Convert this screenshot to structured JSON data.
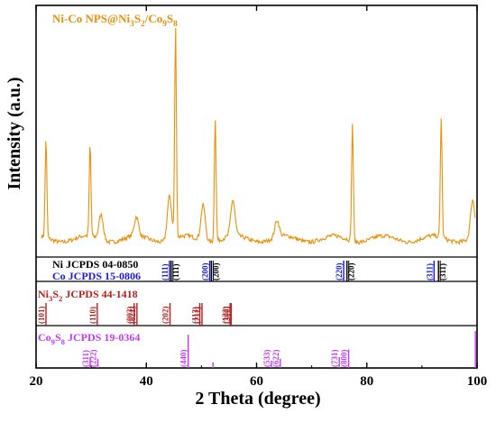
{
  "chart_data": {
    "type": "line",
    "title_parts": [
      {
        "text": "Ni-Co NPS@Ni",
        "sub": false
      },
      {
        "text": "3",
        "sub": true
      },
      {
        "text": "S",
        "sub": false
      },
      {
        "text": "2",
        "sub": true
      },
      {
        "text": "/Co",
        "sub": false
      },
      {
        "text": "9",
        "sub": true
      },
      {
        "text": "S",
        "sub": false
      },
      {
        "text": "8",
        "sub": true
      }
    ],
    "xlabel": "2 Theta (degree)",
    "ylabel": "Intensity (a.u.)",
    "xlim": [
      20,
      100
    ],
    "xticks": [
      20,
      40,
      60,
      80,
      100
    ],
    "colors": {
      "pattern": "#e8910c",
      "ni": "#000000",
      "co": "#1a1ad6",
      "ni3s2": "#b22222",
      "co9s8": "#c03cf0"
    },
    "experimental_peaks": [
      {
        "x": 21.8,
        "y": 0.47
      },
      {
        "x": 29.8,
        "y": 0.44
      },
      {
        "x": 31.8,
        "y": 0.12
      },
      {
        "x": 38.2,
        "y": 0.09
      },
      {
        "x": 44.2,
        "y": 0.21
      },
      {
        "x": 45.3,
        "y": 1.0
      },
      {
        "x": 50.3,
        "y": 0.17
      },
      {
        "x": 52.5,
        "y": 0.59
      },
      {
        "x": 55.7,
        "y": 0.17
      },
      {
        "x": 63.7,
        "y": 0.08
      },
      {
        "x": 77.4,
        "y": 0.56
      },
      {
        "x": 93.5,
        "y": 0.57
      },
      {
        "x": 99.2,
        "y": 0.18
      }
    ],
    "references": [
      {
        "label": "Ni  JCPDS 04-0850",
        "color_key": "ni",
        "peaks": [
          {
            "x": 44.5,
            "hkl": "(111)"
          },
          {
            "x": 51.8,
            "hkl": "(200)"
          },
          {
            "x": 76.4,
            "hkl": "(220)"
          },
          {
            "x": 93.0,
            "hkl": "(311)"
          }
        ]
      },
      {
        "label": "Co  JCPDS 15-0806",
        "color_key": "co",
        "peaks": [
          {
            "x": 44.2,
            "hkl": "(111)"
          },
          {
            "x": 51.5,
            "hkl": "(200)"
          },
          {
            "x": 75.8,
            "hkl": "(220)"
          },
          {
            "x": 92.2,
            "hkl": "(311)"
          }
        ]
      },
      {
        "label_parts": [
          {
            "text": "Ni",
            "sub": false
          },
          {
            "text": "3",
            "sub": true
          },
          {
            "text": "S",
            "sub": false
          },
          {
            "text": "2",
            "sub": true
          },
          {
            "text": "  JCPDS 44-1418",
            "sub": false
          }
        ],
        "color_key": "ni3s2",
        "peaks": [
          {
            "x": 21.8,
            "hkl": "(101)"
          },
          {
            "x": 31.1,
            "hkl": "(110)"
          },
          {
            "x": 37.8,
            "hkl": "(003)"
          },
          {
            "x": 38.3,
            "hkl": "(021)"
          },
          {
            "x": 44.3,
            "hkl": "(202)"
          },
          {
            "x": 49.7,
            "hkl": "(113)"
          },
          {
            "x": 50.1,
            "hkl": "(211)"
          },
          {
            "x": 55.2,
            "hkl": "(122)"
          },
          {
            "x": 55.4,
            "hkl": "(300)"
          }
        ]
      },
      {
        "label_parts": [
          {
            "text": "Co",
            "sub": false
          },
          {
            "text": "9",
            "sub": true
          },
          {
            "text": "S",
            "sub": false
          },
          {
            "text": "8",
            "sub": true
          },
          {
            "text": "  JCPDS 19-0364",
            "sub": false
          }
        ],
        "color_key": "co9s8",
        "peaks": [
          {
            "x": 29.8,
            "hkl": "(311)",
            "h": 0.3
          },
          {
            "x": 31.2,
            "hkl": "(222)",
            "h": 0.25
          },
          {
            "x": 47.6,
            "hkl": "(440)",
            "h": 0.9
          },
          {
            "x": 52.1,
            "hkl": "",
            "h": 0.15
          },
          {
            "x": 62.7,
            "hkl": "(533)",
            "h": 0.2
          },
          {
            "x": 64.3,
            "hkl": "(622)",
            "h": 0.25
          },
          {
            "x": 75.0,
            "hkl": "(731)",
            "h": 0.3
          },
          {
            "x": 76.7,
            "hkl": "(800)",
            "h": 0.5
          },
          {
            "x": 99.7,
            "hkl": "",
            "h": 1.0
          }
        ]
      }
    ]
  }
}
